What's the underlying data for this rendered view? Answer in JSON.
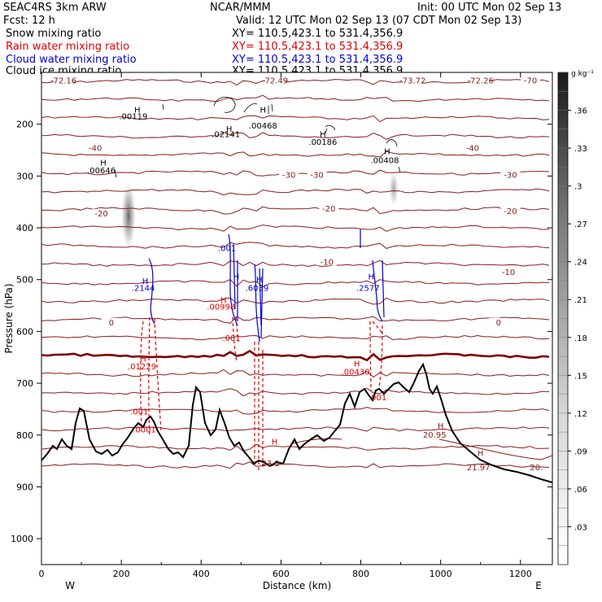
{
  "header": {
    "model": "SEAC4RS  3km ARW",
    "org": "NCAR/MMM",
    "init": "Init: 00 UTC Mon 02 Sep 13",
    "fcst": "Fcst:    12 h",
    "valid": "Valid: 12 UTC Mon 02 Sep 13 (07 CDT Mon 02 Sep 13)",
    "fields": [
      {
        "label": "Snow mixing ratio",
        "xy": "XY= 110.5,423.1 to 531.4,356.9",
        "color": "#000000"
      },
      {
        "label": "Rain water mixing ratio",
        "xy": "XY= 110.5,423.1 to 531.4,356.9",
        "color": "#e00000"
      },
      {
        "label": "Cloud water mixing ratio",
        "xy": "XY= 110.5,423.1 to 531.4,356.9",
        "color": "#0000d0"
      },
      {
        "label": "Cloud ice mixing ratio",
        "xy": "XY= 110.5,423.1 to 531.4,356.9",
        "color": "#000000"
      }
    ]
  },
  "chart_data": {
    "type": "cross-section",
    "xlabel": "Distance (km)",
    "ylabel": "Pressure (hPa)",
    "xlim": [
      0,
      1280
    ],
    "ylim": [
      1050,
      100
    ],
    "x_ticks": [
      0,
      200,
      400,
      600,
      800,
      1000,
      1200
    ],
    "y_ticks": [
      200,
      300,
      400,
      500,
      600,
      700,
      800,
      900,
      1000
    ],
    "x_end_labels": {
      "left": "W",
      "right": "E"
    },
    "colorbar": {
      "unit": "g kg⁻¹",
      "ticks": [
        ".36",
        ".33",
        ".3",
        ".27",
        ".24",
        ".21",
        ".18",
        ".15",
        ".12",
        ".09",
        ".06",
        ".03"
      ],
      "min": 0,
      "max": 0.39
    },
    "temperature_isotherm_labels": [
      {
        "text": "-72.16",
        "x": 55,
        "p": 118
      },
      {
        "text": "-72.49",
        "x": 585,
        "p": 118
      },
      {
        "text": "-73.72",
        "x": 930,
        "p": 118
      },
      {
        "text": "-72.26",
        "x": 1100,
        "p": 118
      },
      {
        "text": "-70",
        "x": 1225,
        "p": 118
      },
      {
        "text": "-40",
        "x": 135,
        "p": 248
      },
      {
        "text": "-40",
        "x": 1080,
        "p": 248
      },
      {
        "text": "-30",
        "x": 620,
        "p": 300
      },
      {
        "text": "-30",
        "x": 690,
        "p": 300
      },
      {
        "text": "-30",
        "x": 1175,
        "p": 300
      },
      {
        "text": "-20",
        "x": 150,
        "p": 375
      },
      {
        "text": "-20",
        "x": 720,
        "p": 365
      },
      {
        "text": "-20",
        "x": 1175,
        "p": 370
      },
      {
        "text": "-10",
        "x": 715,
        "p": 468
      },
      {
        "text": "-10",
        "x": 1170,
        "p": 488
      },
      {
        "text": "0",
        "x": 175,
        "p": 585
      },
      {
        "text": "0",
        "x": 1145,
        "p": 585
      }
    ],
    "maxima_labels": [
      {
        "text": "H",
        "x": 240,
        "p": 178,
        "color": "#000000"
      },
      {
        "text": ".00119",
        "x": 230,
        "p": 190,
        "color": "#000000"
      },
      {
        "text": "H",
        "x": 470,
        "p": 215,
        "color": "#000000"
      },
      {
        "text": ".02141",
        "x": 462,
        "p": 225,
        "color": "#000000"
      },
      {
        "text": "H",
        "x": 555,
        "p": 178,
        "color": "#000000"
      },
      {
        "text": ".00468",
        "x": 555,
        "p": 208,
        "color": "#000000"
      },
      {
        "text": "H",
        "x": 705,
        "p": 225,
        "color": "#000000"
      },
      {
        "text": ".00186",
        "x": 705,
        "p": 240,
        "color": "#000000"
      },
      {
        "text": "H",
        "x": 866,
        "p": 258,
        "color": "#000000"
      },
      {
        "text": ".00408",
        "x": 860,
        "p": 275,
        "color": "#000000"
      },
      {
        "text": "H",
        "x": 155,
        "p": 280,
        "color": "#000000"
      },
      {
        "text": ".00646",
        "x": 150,
        "p": 295,
        "color": "#000000"
      },
      {
        "text": "H",
        "x": 260,
        "p": 508,
        "color": "#0000d0"
      },
      {
        "text": ".2144",
        "x": 255,
        "p": 522,
        "color": "#0000d0"
      },
      {
        "text": ".001",
        "x": 465,
        "p": 445,
        "color": "#0000d0"
      },
      {
        "text": "H",
        "x": 488,
        "p": 500,
        "color": "#0000d0"
      },
      {
        "text": "H",
        "x": 546,
        "p": 505,
        "color": "#0000d0"
      },
      {
        "text": ".6039",
        "x": 540,
        "p": 522,
        "color": "#0000d0"
      },
      {
        "text": "H",
        "x": 826,
        "p": 500,
        "color": "#0000d0"
      },
      {
        "text": ".2577",
        "x": 818,
        "p": 522,
        "color": "#0000d0"
      },
      {
        "text": "H",
        "x": 456,
        "p": 545,
        "color": "#e00000"
      },
      {
        "text": ".00998",
        "x": 450,
        "p": 558,
        "color": "#e00000"
      },
      {
        "text": ".001",
        "x": 476,
        "p": 618,
        "color": "#e00000"
      },
      {
        "text": "H",
        "x": 255,
        "p": 658,
        "color": "#e00000"
      },
      {
        "text": ".01229",
        "x": 252,
        "p": 673,
        "color": "#e00000"
      },
      {
        "text": "H",
        "x": 790,
        "p": 668,
        "color": "#e00000"
      },
      {
        "text": ".00430",
        "x": 787,
        "p": 683,
        "color": "#e00000"
      },
      {
        "text": ".001",
        "x": 842,
        "p": 733,
        "color": "#e00000"
      },
      {
        "text": ".001",
        "x": 245,
        "p": 760,
        "color": "#e00000"
      },
      {
        "text": ".0001",
        "x": 258,
        "p": 795,
        "color": "#e00000"
      },
      {
        "text": "H",
        "x": 584,
        "p": 818,
        "color": "#e00000"
      },
      {
        "text": "23.9",
        "x": 574,
        "p": 860,
        "color": "#8b1a1a"
      },
      {
        "text": "H",
        "x": 1000,
        "p": 788,
        "color": "#8b1a1a"
      },
      {
        "text": "20.95",
        "x": 985,
        "p": 805,
        "color": "#8b1a1a"
      },
      {
        "text": "H",
        "x": 1100,
        "p": 840,
        "color": "#8b1a1a"
      },
      {
        "text": "21.97",
        "x": 1095,
        "p": 868,
        "color": "#8b1a1a"
      },
      {
        "text": "20.",
        "x": 1240,
        "p": 868,
        "color": "#8b1a1a"
      }
    ]
  }
}
